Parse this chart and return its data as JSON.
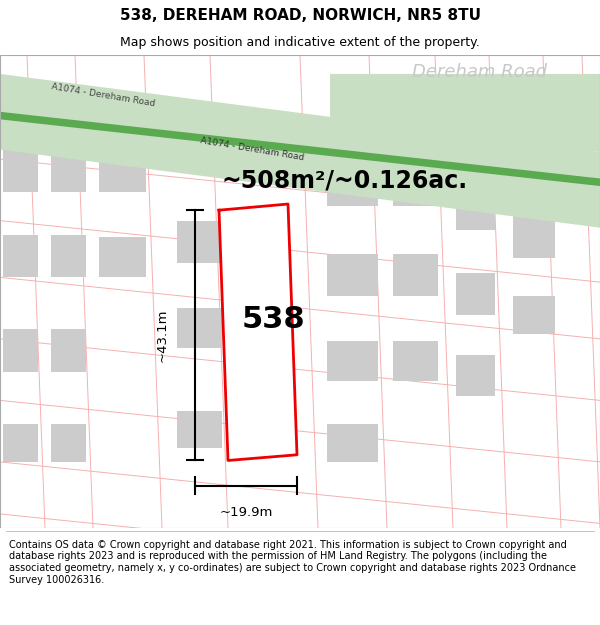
{
  "title": "538, DEREHAM ROAD, NORWICH, NR5 8TU",
  "subtitle": "Map shows position and indicative extent of the property.",
  "area_text": "~508m²/~0.126ac.",
  "width_label": "~19.9m",
  "height_label": "~43.1m",
  "property_number": "538",
  "footer_text": "Contains OS data © Crown copyright and database right 2021. This information is subject to Crown copyright and database rights 2023 and is reproduced with the permission of HM Land Registry. The polygons (including the associated geometry, namely x, y co-ordinates) are subject to Crown copyright and database rights 2023 Ordnance Survey 100026316.",
  "bg_color": "#ffffff",
  "road_green_fill": "#c8dfc4",
  "road_green_center": "#5aaa50",
  "dereham_road_label_top": "Dereham Road",
  "a1074_label_topleft": "A1074 - Dereham Road",
  "a1074_label_road": "A1074 - Dereham Road",
  "plot_red": "#ee0000",
  "building_gray": "#cccccc",
  "boundary_pink": "#f5b0b0",
  "title_fontsize": 11,
  "subtitle_fontsize": 9,
  "footer_fontsize": 7.0,
  "area_fontsize": 17,
  "number_fontsize": 22,
  "dim_fontsize": 9.5
}
